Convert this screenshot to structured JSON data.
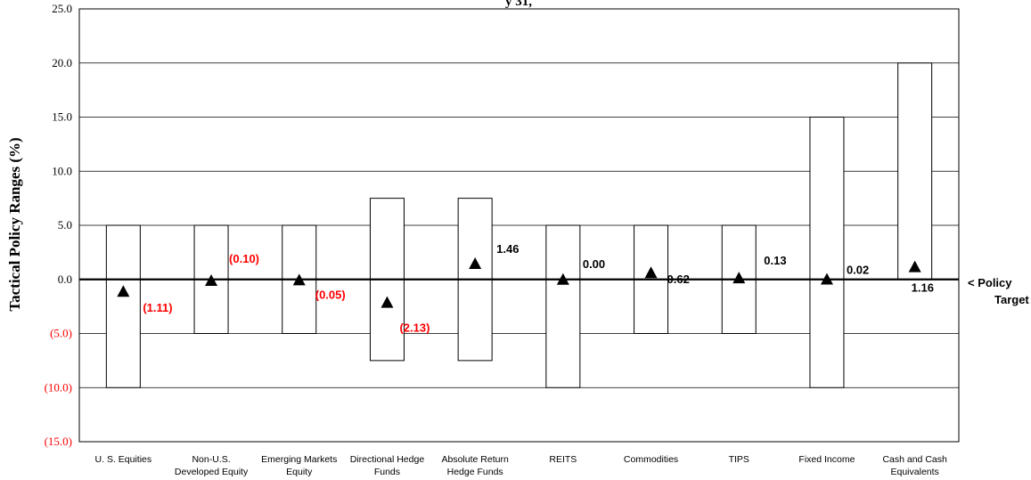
{
  "chart_data": {
    "type": "range",
    "title_fragment": "y 31,",
    "ylabel": "Tactical Policy Ranges (%)",
    "ylim": [
      -15,
      25
    ],
    "yticks": [
      "(15.0)",
      "(10.0)",
      "(5.0)",
      "0.0",
      "5.0",
      "10.0",
      "15.0",
      "20.0",
      "25.0"
    ],
    "ytick_values": [
      -15,
      -10,
      -5,
      0,
      5,
      10,
      15,
      20,
      25
    ],
    "grid": true,
    "reference_line_label": "< Policy Target",
    "categories": [
      {
        "name": "U. S. Equities",
        "lines": [
          "U. S. Equities"
        ],
        "low": -10,
        "high": 5,
        "value": -1.11,
        "label": "(1.11)"
      },
      {
        "name": "Non-U.S. Developed Equity",
        "lines": [
          "Non-U.S.",
          "Developed Equity"
        ],
        "low": -5,
        "high": 5,
        "value": -0.1,
        "label": "(0.10)"
      },
      {
        "name": "Emerging Markets Equity",
        "lines": [
          "Emerging Markets",
          "Equity"
        ],
        "low": -5,
        "high": 5,
        "value": -0.05,
        "label": "(0.05)"
      },
      {
        "name": "Directional Hedge Funds",
        "lines": [
          "Directional Hedge",
          "Funds"
        ],
        "low": -7.5,
        "high": 7.5,
        "value": -2.13,
        "label": "(2.13)"
      },
      {
        "name": "Absolute Return Hedge Funds",
        "lines": [
          "Absolute Return",
          "Hedge Funds"
        ],
        "low": -7.5,
        "high": 7.5,
        "value": 1.46,
        "label": "1.46"
      },
      {
        "name": "REITS",
        "lines": [
          "REITS"
        ],
        "low": -10,
        "high": 5,
        "value": 0.0,
        "label": "0.00"
      },
      {
        "name": "Commodities",
        "lines": [
          "Commodities"
        ],
        "low": -5,
        "high": 5,
        "value": 0.62,
        "label": "0.62"
      },
      {
        "name": "TIPS",
        "lines": [
          "TIPS"
        ],
        "low": -5,
        "high": 5,
        "value": 0.13,
        "label": "0.13"
      },
      {
        "name": "Fixed Income",
        "lines": [
          "Fixed Income"
        ],
        "low": -10,
        "high": 15,
        "value": 0.02,
        "label": "0.02"
      },
      {
        "name": "Cash and Cash Equivalents",
        "lines": [
          "Cash and Cash",
          "Equivalents"
        ],
        "low": 0,
        "high": 20,
        "value": 1.16,
        "label": "1.16"
      }
    ],
    "colors": {
      "negative": "#ff0000",
      "positive": "#000000",
      "marker": "#000000",
      "box": "#000000",
      "grid": "#000000"
    }
  }
}
